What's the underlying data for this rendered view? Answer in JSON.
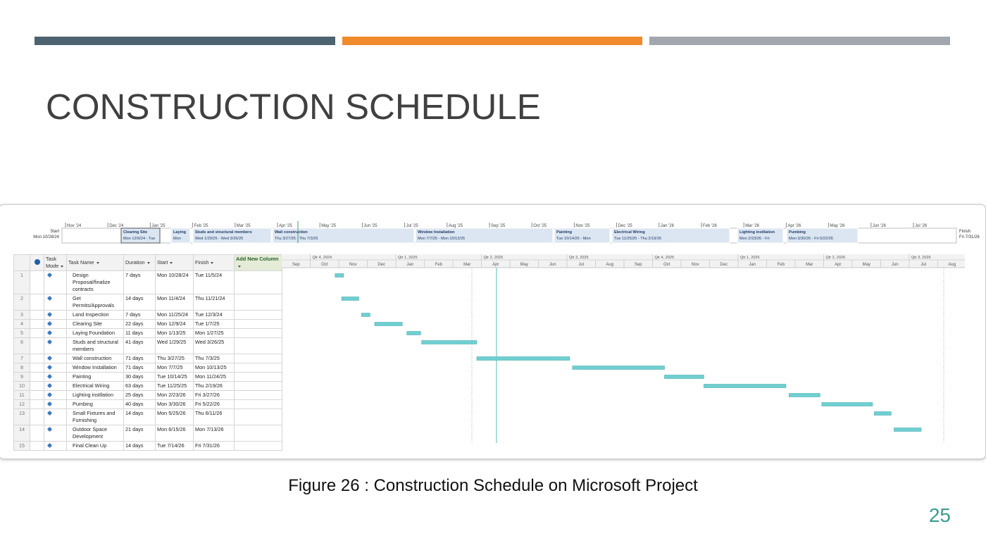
{
  "slide": {
    "title": "CONSTRUCTION SCHEDULE",
    "caption": "Figure 26 : Construction Schedule on Microsoft Project",
    "page_number": 25
  },
  "timeline": {
    "start_label": "Start",
    "start_date": "Mon 10/28/24",
    "finish_label": "Finish",
    "finish_date": "Fri 7/31/26",
    "months": [
      "Nov '24",
      "Dec '24",
      "Jan '25",
      "Feb '25",
      "Mar '25",
      "Apr '25",
      "May '25",
      "Jun '25",
      "Jul '25",
      "Aug '25",
      "Sep '25",
      "Oct '25",
      "Nov '25",
      "Dec '25",
      "Jan '26",
      "Feb '26",
      "Mar '26",
      "Apr '26",
      "May '26",
      "Jun '26",
      "Jul '26"
    ],
    "items": [
      {
        "name": "Clearing Site",
        "dates": "Mon 12/9/24 - Tue"
      },
      {
        "name": "Laying",
        "dates": "Mon"
      },
      {
        "name": "Studs and structural members",
        "dates": "Wed 1/29/25 - Wed 3/26/25"
      },
      {
        "name": "Wall construction",
        "dates": "Thu 3/27/25 - Thu 7/3/25"
      },
      {
        "name": "Window Installation",
        "dates": "Mon 7/7/25 - Mon 10/13/25"
      },
      {
        "name": "Painting",
        "dates": "Tue 10/14/25 - Mon"
      },
      {
        "name": "Electrical Wiring",
        "dates": "Tue 11/25/25 - Thu 2/19/26"
      },
      {
        "name": "Lighting instllation",
        "dates": "Mon 2/23/26 - Fri"
      },
      {
        "name": "Pumbing",
        "dates": "Mon 3/30/26 - Fri 5/22/26"
      }
    ]
  },
  "table": {
    "columns": [
      "Task Mode",
      "Task Name",
      "Duration",
      "Start",
      "Finish",
      "Add New Column"
    ],
    "rows": [
      {
        "id": 1,
        "name": "Design Proposal/finalize contracts",
        "duration": "7 days",
        "start": "Mon 10/28/24",
        "finish": "Tue 11/5/24"
      },
      {
        "id": 2,
        "name": "Get Permits/Approvals",
        "duration": "14 days",
        "start": "Mon 11/4/24",
        "finish": "Thu 11/21/24"
      },
      {
        "id": 3,
        "name": "Land Inspection",
        "duration": "7 days",
        "start": "Mon 11/25/24",
        "finish": "Tue 12/3/24"
      },
      {
        "id": 4,
        "name": "Clearing Site",
        "duration": "22 days",
        "start": "Mon 12/9/24",
        "finish": "Tue 1/7/25"
      },
      {
        "id": 5,
        "name": "Laying Foundation",
        "duration": "11 days",
        "start": "Mon 1/13/25",
        "finish": "Mon 1/27/25"
      },
      {
        "id": 6,
        "name": "Studs and structural members",
        "duration": "41 days",
        "start": "Wed 1/29/25",
        "finish": "Wed 3/26/25"
      },
      {
        "id": 7,
        "name": "Wall construction",
        "duration": "71 days",
        "start": "Thu 3/27/25",
        "finish": "Thu 7/3/25"
      },
      {
        "id": 8,
        "name": "Window Installation",
        "duration": "71 days",
        "start": "Mon 7/7/25",
        "finish": "Mon 10/13/25"
      },
      {
        "id": 9,
        "name": "Painting",
        "duration": "30 days",
        "start": "Tue 10/14/25",
        "finish": "Mon 11/24/25"
      },
      {
        "id": 10,
        "name": "Electrical Wiring",
        "duration": "63 days",
        "start": "Tue 11/25/25",
        "finish": "Thu 2/19/26"
      },
      {
        "id": 11,
        "name": "Lighting instllation",
        "duration": "25 days",
        "start": "Mon 2/23/26",
        "finish": "Fri 3/27/26"
      },
      {
        "id": 12,
        "name": "Pumbing",
        "duration": "40 days",
        "start": "Mon 3/30/26",
        "finish": "Fri 5/22/26"
      },
      {
        "id": 13,
        "name": "Small Fixtures and Furnishing",
        "duration": "14 days",
        "start": "Mon 5/25/26",
        "finish": "Thu 6/11/26"
      },
      {
        "id": 14,
        "name": "Outdoor Space Development",
        "duration": "21 days",
        "start": "Mon 6/15/26",
        "finish": "Mon 7/13/26"
      },
      {
        "id": 15,
        "name": "Final Clean Up",
        "duration": "14 days",
        "start": "Tue 7/14/26",
        "finish": "Fri 7/31/26"
      }
    ]
  },
  "gantt": {
    "quarters": [
      "Qtr 4, 2024",
      "Qtr 1, 2025",
      "Qtr 2, 2025",
      "Qtr 3, 2025",
      "Qtr 4, 2025",
      "Qtr 1, 2026",
      "Qtr 2, 2026",
      "Qtr 3, 2026"
    ],
    "months": [
      "Sep",
      "Oct",
      "Nov",
      "Dec",
      "Jan",
      "Feb",
      "Mar",
      "Apr",
      "May",
      "Jun",
      "Jul",
      "Aug",
      "Sep",
      "Oct",
      "Nov",
      "Dec",
      "Jan",
      "Feb",
      "Mar",
      "Apr",
      "May",
      "Jun",
      "Jul",
      "Aug"
    ]
  }
}
